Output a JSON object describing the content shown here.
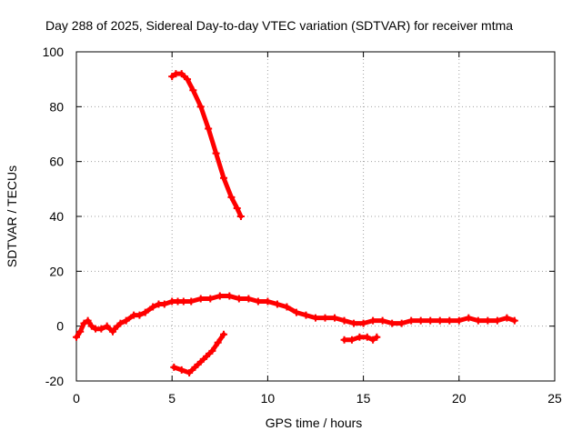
{
  "chart_data": {
    "type": "scatter",
    "title": "Day 288 of 2025, Sidereal Day-to-day VTEC variation (SDTVAR) for receiver mtma",
    "xlabel": "GPS time / hours",
    "ylabel": "SDTVAR / TECUs",
    "xlim": [
      0,
      25
    ],
    "ylim": [
      -20,
      100
    ],
    "xticks": [
      0,
      5,
      10,
      15,
      20,
      25
    ],
    "yticks": [
      -20,
      0,
      20,
      40,
      60,
      80,
      100
    ],
    "grid": true,
    "series": [
      {
        "name": "track-main",
        "color": "#ff0000",
        "x": [
          0.0,
          0.2,
          0.4,
          0.6,
          0.8,
          1.0,
          1.3,
          1.6,
          1.9,
          2.0,
          2.3,
          2.6,
          3.0,
          3.3,
          3.6,
          4.0,
          4.3,
          4.6,
          5.0,
          5.3,
          5.6,
          6.0,
          6.5,
          7.0,
          7.5,
          8.0,
          8.5,
          9.0,
          9.5,
          10.0,
          10.5,
          11.0,
          11.5,
          12.0,
          12.5,
          13.0,
          13.5,
          14.0,
          14.5,
          15.0,
          15.5,
          16.0,
          16.5,
          17.0,
          17.5,
          18.0,
          18.5,
          19.0,
          19.5,
          20.0,
          20.5,
          21.0,
          21.5,
          22.0,
          22.5,
          22.9
        ],
        "y": [
          -4,
          -2,
          1,
          2,
          0,
          -1,
          -1,
          0,
          -2,
          -1,
          1,
          2,
          4,
          4,
          5,
          7,
          8,
          8,
          9,
          9,
          9,
          9,
          10,
          10,
          11,
          11,
          10,
          10,
          9,
          9,
          8,
          7,
          5,
          4,
          3,
          3,
          3,
          2,
          1,
          1,
          2,
          2,
          1,
          1,
          2,
          2,
          2,
          2,
          2,
          2,
          3,
          2,
          2,
          2,
          3,
          2
        ]
      },
      {
        "name": "track-high-arc",
        "color": "#ff0000",
        "x": [
          5.0,
          5.2,
          5.5,
          5.8,
          6.1,
          6.5,
          6.9,
          7.3,
          7.7,
          8.1,
          8.4,
          8.6
        ],
        "y": [
          91,
          92,
          92,
          90,
          86,
          80,
          72,
          63,
          54,
          47,
          43,
          40
        ]
      },
      {
        "name": "track-negative",
        "color": "#ff0000",
        "x": [
          5.1,
          5.5,
          5.9,
          6.2,
          6.5,
          6.8,
          7.1,
          7.4,
          7.7
        ],
        "y": [
          -15,
          -16,
          -17,
          -15,
          -13,
          -11,
          -9,
          -6,
          -3
        ]
      },
      {
        "name": "track-short",
        "color": "#ff0000",
        "x": [
          14.0,
          14.4,
          14.8,
          15.2,
          15.5,
          15.7
        ],
        "y": [
          -5,
          -5,
          -4,
          -4,
          -5,
          -4
        ]
      }
    ]
  }
}
